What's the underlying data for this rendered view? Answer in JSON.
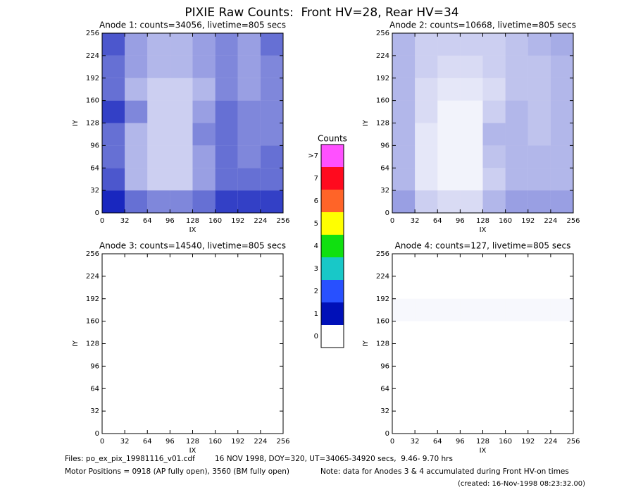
{
  "title": "PIXIE Raw Counts:  Front HV=28, Rear HV=34",
  "colorbar": {
    "title": "Counts",
    "labels": [
      "0",
      "1",
      "2",
      "3",
      "4",
      "5",
      "6",
      "7",
      ">7"
    ],
    "colors": [
      "#ffffff",
      "#0010b8",
      "#2850ff",
      "#18c8c8",
      "#10e010",
      "#ffff00",
      "#ff6428",
      "#ff0a1e",
      "#ff50ff"
    ]
  },
  "footer": {
    "files": "Files: po_ex_pix_19981116_v01.cdf",
    "info": "16 NOV 1998, DOY=320, UT=34065-34920 secs,  9.46- 9.70 hrs",
    "motor": "Motor Positions = 0918 (AP fully open), 3560 (BM fully open)",
    "note": "Note: data for Anodes 3 & 4 accumulated during Front HV-on times",
    "created": "(created: 16-Nov-1998 08:23:32.00)"
  },
  "chart_data": [
    {
      "type": "heatmap",
      "title": "Anode 1: counts=34056, livetime=805 secs",
      "xlabel": "IX",
      "ylabel": "IY",
      "xlim": [
        0,
        256
      ],
      "ylim": [
        0,
        256
      ],
      "xticks": [
        0,
        32,
        64,
        96,
        128,
        160,
        192,
        224,
        256
      ],
      "yticks": [
        0,
        32,
        64,
        96,
        128,
        160,
        192,
        224,
        256
      ],
      "z": [
        [
          0.9,
          0.6,
          0.5,
          0.5,
          0.6,
          0.8,
          0.8,
          0.8
        ],
        [
          0.7,
          0.3,
          0.2,
          0.2,
          0.4,
          0.6,
          0.6,
          0.6
        ],
        [
          0.6,
          0.3,
          0.2,
          0.2,
          0.4,
          0.6,
          0.5,
          0.6
        ],
        [
          0.6,
          0.3,
          0.2,
          0.2,
          0.5,
          0.6,
          0.5,
          0.5
        ],
        [
          0.8,
          0.5,
          0.2,
          0.2,
          0.4,
          0.6,
          0.5,
          0.5
        ],
        [
          0.6,
          0.3,
          0.2,
          0.2,
          0.3,
          0.5,
          0.4,
          0.5
        ],
        [
          0.6,
          0.4,
          0.3,
          0.3,
          0.4,
          0.5,
          0.4,
          0.5
        ],
        [
          0.7,
          0.4,
          0.3,
          0.3,
          0.4,
          0.5,
          0.4,
          0.6
        ]
      ]
    },
    {
      "type": "heatmap",
      "title": "Anode 2: counts=10668, livetime=805 secs",
      "xlabel": "IX",
      "ylabel": "IY",
      "xlim": [
        0,
        256
      ],
      "ylim": [
        0,
        256
      ],
      "xticks": [
        0,
        32,
        64,
        96,
        128,
        160,
        192,
        224,
        256
      ],
      "yticks": [
        0,
        32,
        64,
        96,
        128,
        160,
        192,
        224,
        256
      ],
      "z": [
        [
          0.4,
          0.2,
          0.15,
          0.15,
          0.3,
          0.4,
          0.4,
          0.4
        ],
        [
          0.3,
          0.1,
          0.05,
          0.05,
          0.2,
          0.3,
          0.3,
          0.3
        ],
        [
          0.3,
          0.1,
          0.05,
          0.05,
          0.25,
          0.3,
          0.3,
          0.3
        ],
        [
          0.3,
          0.1,
          0.05,
          0.05,
          0.3,
          0.3,
          0.25,
          0.3
        ],
        [
          0.3,
          0.15,
          0.05,
          0.05,
          0.2,
          0.3,
          0.25,
          0.3
        ],
        [
          0.3,
          0.15,
          0.1,
          0.1,
          0.15,
          0.25,
          0.25,
          0.3
        ],
        [
          0.3,
          0.2,
          0.15,
          0.15,
          0.2,
          0.25,
          0.25,
          0.3
        ],
        [
          0.3,
          0.2,
          0.2,
          0.2,
          0.2,
          0.25,
          0.3,
          0.35
        ]
      ]
    },
    {
      "type": "heatmap",
      "title": "Anode 3: counts=14540, livetime=805 secs",
      "xlabel": "IX",
      "ylabel": "IY",
      "xlim": [
        0,
        256
      ],
      "ylim": [
        0,
        256
      ],
      "xticks": [
        0,
        32,
        64,
        96,
        128,
        160,
        192,
        224,
        256
      ],
      "yticks": [
        0,
        32,
        64,
        96,
        128,
        160,
        192,
        224,
        256
      ],
      "z": [
        [
          0,
          0,
          0,
          0,
          0,
          0,
          0,
          0
        ],
        [
          0,
          0,
          0,
          0,
          0,
          0,
          0,
          0
        ],
        [
          0,
          0,
          0,
          0,
          0,
          0,
          0,
          0
        ],
        [
          0,
          0,
          0,
          0,
          0,
          0,
          0,
          0
        ],
        [
          0,
          0,
          0,
          0,
          0,
          0,
          0,
          0
        ],
        [
          0,
          0,
          0,
          0,
          0,
          0,
          0,
          0
        ],
        [
          0,
          0,
          0,
          0,
          0,
          0,
          0,
          0
        ],
        [
          0,
          0,
          0,
          0,
          0,
          0,
          0,
          0
        ]
      ]
    },
    {
      "type": "heatmap",
      "title": "Anode 4: counts=127, livetime=805 secs",
      "xlabel": "IX",
      "ylabel": "IY",
      "xlim": [
        0,
        256
      ],
      "ylim": [
        0,
        256
      ],
      "xticks": [
        0,
        32,
        64,
        96,
        128,
        160,
        192,
        224,
        256
      ],
      "yticks": [
        0,
        32,
        64,
        96,
        128,
        160,
        192,
        224,
        256
      ],
      "z": [
        [
          0,
          0,
          0,
          0,
          0,
          0,
          0,
          0
        ],
        [
          0,
          0,
          0,
          0,
          0,
          0,
          0,
          0
        ],
        [
          0,
          0,
          0,
          0,
          0,
          0,
          0,
          0
        ],
        [
          0,
          0,
          0,
          0,
          0,
          0,
          0,
          0
        ],
        [
          0,
          0,
          0,
          0,
          0,
          0,
          0,
          0
        ],
        [
          0.03,
          0.03,
          0.03,
          0.03,
          0.03,
          0.03,
          0.03,
          0.03
        ],
        [
          0,
          0,
          0,
          0,
          0,
          0,
          0,
          0
        ],
        [
          0,
          0,
          0,
          0,
          0,
          0,
          0,
          0
        ]
      ]
    }
  ]
}
